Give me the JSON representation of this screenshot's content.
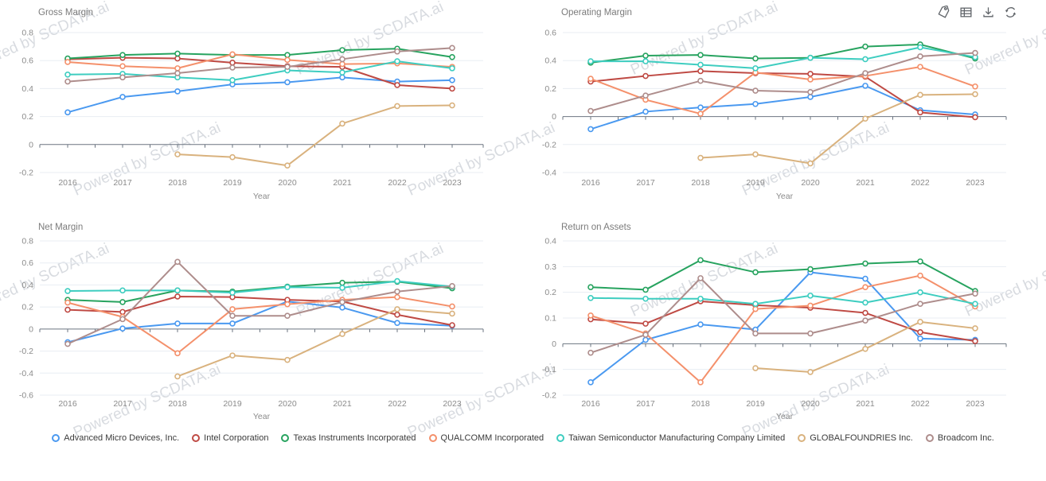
{
  "watermark_text": "Powered by SCDATA.ai",
  "toolbar": {
    "icons": [
      "tag-icon",
      "table-icon",
      "download-icon",
      "refresh-icon"
    ]
  },
  "companies": [
    {
      "name": "Advanced Micro Devices, Inc.",
      "color": "#4a99f0"
    },
    {
      "name": "Intel Corporation",
      "color": "#bf4a44"
    },
    {
      "name": "Texas Instruments Incorporated",
      "color": "#27a35f"
    },
    {
      "name": "QUALCOMM Incorporated",
      "color": "#f4906b"
    },
    {
      "name": "Taiwan Semiconductor Manufacturing Company Limited",
      "color": "#3ecdc0"
    },
    {
      "name": "GLOBALFOUNDRIES Inc.",
      "color": "#d9b27e"
    },
    {
      "name": "Broadcom Inc.",
      "color": "#ae8d8c"
    }
  ],
  "chart_data": [
    {
      "type": "line",
      "title": "Gross Margin",
      "xlabel": "Year",
      "x": [
        2016,
        2017,
        2018,
        2019,
        2020,
        2021,
        2022,
        2023
      ],
      "ylim": [
        -0.2,
        0.8
      ],
      "ytick_step": 0.2,
      "grid": true,
      "series": [
        {
          "name": "Advanced Micro Devices, Inc.",
          "values": [
            0.23,
            0.34,
            0.38,
            0.43,
            0.445,
            0.48,
            0.45,
            0.46
          ]
        },
        {
          "name": "Intel Corporation",
          "values": [
            0.61,
            0.62,
            0.615,
            0.585,
            0.56,
            0.555,
            0.425,
            0.4
          ]
        },
        {
          "name": "Texas Instruments Incorporated",
          "values": [
            0.615,
            0.64,
            0.65,
            0.64,
            0.64,
            0.675,
            0.685,
            0.625
          ]
        },
        {
          "name": "QUALCOMM Incorporated",
          "values": [
            0.59,
            0.56,
            0.545,
            0.645,
            0.605,
            0.575,
            0.58,
            0.555
          ]
        },
        {
          "name": "Taiwan Semiconductor Manufacturing Company Limited",
          "values": [
            0.5,
            0.505,
            0.48,
            0.46,
            0.53,
            0.515,
            0.595,
            0.545
          ]
        },
        {
          "name": "GLOBALFOUNDRIES Inc.",
          "values": [
            null,
            null,
            -0.07,
            -0.09,
            -0.15,
            0.15,
            0.275,
            0.28
          ]
        },
        {
          "name": "Broadcom Inc.",
          "values": [
            0.45,
            0.48,
            0.51,
            0.55,
            0.555,
            0.61,
            0.665,
            0.69
          ]
        }
      ]
    },
    {
      "type": "line",
      "title": "Operating Margin",
      "xlabel": "Year",
      "x": [
        2016,
        2017,
        2018,
        2019,
        2020,
        2021,
        2022,
        2023
      ],
      "ylim": [
        -0.4,
        0.6
      ],
      "ytick_step": 0.2,
      "grid": true,
      "series": [
        {
          "name": "Advanced Micro Devices, Inc.",
          "values": [
            -0.09,
            0.035,
            0.065,
            0.09,
            0.14,
            0.22,
            0.045,
            0.015
          ]
        },
        {
          "name": "Intel Corporation",
          "values": [
            0.25,
            0.29,
            0.325,
            0.31,
            0.305,
            0.285,
            0.03,
            -0.005
          ]
        },
        {
          "name": "Texas Instruments Incorporated",
          "values": [
            0.385,
            0.435,
            0.44,
            0.415,
            0.42,
            0.5,
            0.515,
            0.415
          ]
        },
        {
          "name": "QUALCOMM Incorporated",
          "values": [
            0.27,
            0.12,
            0.02,
            0.315,
            0.265,
            0.29,
            0.355,
            0.215
          ]
        },
        {
          "name": "Taiwan Semiconductor Manufacturing Company Limited",
          "values": [
            0.395,
            0.395,
            0.37,
            0.345,
            0.42,
            0.41,
            0.495,
            0.425
          ]
        },
        {
          "name": "GLOBALFOUNDRIES Inc.",
          "values": [
            null,
            null,
            -0.295,
            -0.27,
            -0.335,
            -0.015,
            0.155,
            0.16
          ]
        },
        {
          "name": "Broadcom Inc.",
          "values": [
            0.04,
            0.15,
            0.255,
            0.185,
            0.175,
            0.31,
            0.43,
            0.455
          ]
        }
      ]
    },
    {
      "type": "line",
      "title": "Net Margin",
      "xlabel": "Year",
      "x": [
        2016,
        2017,
        2018,
        2019,
        2020,
        2021,
        2022,
        2023
      ],
      "ylim": [
        -0.6,
        0.8
      ],
      "ytick_step": 0.2,
      "grid": true,
      "series": [
        {
          "name": "Advanced Micro Devices, Inc.",
          "values": [
            -0.12,
            0.005,
            0.05,
            0.05,
            0.25,
            0.195,
            0.055,
            0.03
          ]
        },
        {
          "name": "Intel Corporation",
          "values": [
            0.175,
            0.155,
            0.295,
            0.29,
            0.265,
            0.25,
            0.13,
            0.035
          ]
        },
        {
          "name": "Texas Instruments Incorporated",
          "values": [
            0.265,
            0.245,
            0.35,
            0.34,
            0.385,
            0.42,
            0.43,
            0.37
          ]
        },
        {
          "name": "QUALCOMM Incorporated",
          "values": [
            0.24,
            0.11,
            -0.22,
            0.18,
            0.225,
            0.265,
            0.29,
            0.205
          ]
        },
        {
          "name": "Taiwan Semiconductor Manufacturing Company Limited",
          "values": [
            0.345,
            0.35,
            0.35,
            0.33,
            0.38,
            0.375,
            0.435,
            0.385
          ]
        },
        {
          "name": "GLOBALFOUNDRIES Inc.",
          "values": [
            null,
            null,
            -0.43,
            -0.24,
            -0.28,
            -0.045,
            0.18,
            0.14
          ]
        },
        {
          "name": "Broadcom Inc.",
          "values": [
            -0.135,
            0.09,
            0.61,
            0.12,
            0.12,
            0.245,
            0.34,
            0.39
          ]
        }
      ]
    },
    {
      "type": "line",
      "title": "Return on Assets",
      "xlabel": "Year",
      "x": [
        2016,
        2017,
        2018,
        2019,
        2020,
        2021,
        2022,
        2023
      ],
      "ylim": [
        -0.2,
        0.4
      ],
      "ytick_step": 0.1,
      "grid": true,
      "series": [
        {
          "name": "Advanced Micro Devices, Inc.",
          "values": [
            -0.15,
            0.015,
            0.075,
            0.055,
            0.278,
            0.253,
            0.02,
            0.015
          ]
        },
        {
          "name": "Intel Corporation",
          "values": [
            0.095,
            0.078,
            0.165,
            0.15,
            0.14,
            0.12,
            0.045,
            0.01
          ]
        },
        {
          "name": "Texas Instruments Incorporated",
          "values": [
            0.22,
            0.21,
            0.325,
            0.278,
            0.29,
            0.312,
            0.32,
            0.205
          ]
        },
        {
          "name": "QUALCOMM Incorporated",
          "values": [
            0.11,
            0.04,
            -0.15,
            0.135,
            0.148,
            0.22,
            0.265,
            0.145
          ]
        },
        {
          "name": "Taiwan Semiconductor Manufacturing Company Limited",
          "values": [
            0.178,
            0.175,
            0.175,
            0.155,
            0.187,
            0.16,
            0.2,
            0.155
          ]
        },
        {
          "name": "GLOBALFOUNDRIES Inc.",
          "values": [
            null,
            null,
            null,
            -0.095,
            -0.11,
            -0.02,
            0.085,
            0.06
          ]
        },
        {
          "name": "Broadcom Inc.",
          "values": [
            -0.035,
            0.035,
            0.255,
            0.04,
            0.04,
            0.09,
            0.155,
            0.195
          ]
        }
      ]
    }
  ]
}
